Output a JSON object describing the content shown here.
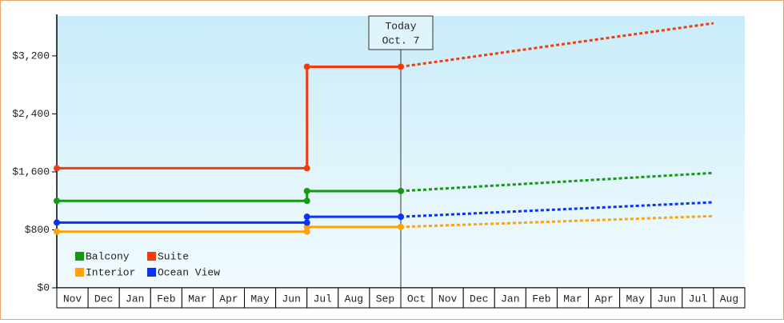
{
  "chart_data": {
    "type": "line",
    "categories": [
      "Nov",
      "Dec",
      "Jan",
      "Feb",
      "Mar",
      "Apr",
      "May",
      "Jun",
      "Jul",
      "Aug",
      "Sep",
      "Oct",
      "Nov",
      "Dec",
      "Jan",
      "Feb",
      "Mar",
      "Apr",
      "May",
      "Jun",
      "Jul",
      "Aug"
    ],
    "series": [
      {
        "name": "Balcony",
        "color": "#139a13",
        "values": [
          1200,
          1200,
          1200,
          1200,
          1200,
          1200,
          1200,
          1200,
          1335,
          1335,
          1335,
          1335,
          null,
          null,
          null,
          null,
          null,
          null,
          null,
          null,
          null,
          null
        ],
        "forecast": [
          null,
          null,
          null,
          null,
          null,
          null,
          null,
          null,
          null,
          null,
          null,
          1335,
          1360,
          1385,
          1410,
          1435,
          1460,
          1485,
          1510,
          1535,
          1560,
          1585
        ]
      },
      {
        "name": "Suite",
        "color": "#f23c0e",
        "values": [
          1650,
          1650,
          1650,
          1650,
          1650,
          1650,
          1650,
          1650,
          3050,
          3050,
          3050,
          3050,
          null,
          null,
          null,
          null,
          null,
          null,
          null,
          null,
          null,
          null
        ],
        "forecast": [
          null,
          null,
          null,
          null,
          null,
          null,
          null,
          null,
          null,
          null,
          null,
          3050,
          3110,
          3170,
          3230,
          3290,
          3350,
          3410,
          3470,
          3530,
          3590,
          3650
        ]
      },
      {
        "name": "Interior",
        "color": "#ffa20c",
        "values": [
          775,
          775,
          775,
          775,
          775,
          775,
          775,
          775,
          840,
          840,
          840,
          840,
          null,
          null,
          null,
          null,
          null,
          null,
          null,
          null,
          null,
          null
        ],
        "forecast": [
          null,
          null,
          null,
          null,
          null,
          null,
          null,
          null,
          null,
          null,
          null,
          840,
          855,
          870,
          885,
          900,
          915,
          930,
          945,
          960,
          975,
          990
        ]
      },
      {
        "name": "Ocean View",
        "color": "#0a32f5",
        "values": [
          900,
          900,
          900,
          900,
          900,
          900,
          900,
          900,
          980,
          980,
          980,
          980,
          null,
          null,
          null,
          null,
          null,
          null,
          null,
          null,
          null,
          null
        ],
        "forecast": [
          null,
          null,
          null,
          null,
          null,
          null,
          null,
          null,
          null,
          null,
          null,
          980,
          1000,
          1020,
          1040,
          1060,
          1080,
          1100,
          1120,
          1140,
          1160,
          1180
        ]
      }
    ],
    "ylim": [
      0,
      3750
    ],
    "yticks": [
      {
        "value": 0,
        "label": "$0"
      },
      {
        "value": 800,
        "label": "$800"
      },
      {
        "value": 1600,
        "label": "$1,600"
      },
      {
        "value": 2400,
        "label": "$2,400"
      },
      {
        "value": 3200,
        "label": "$3,200"
      }
    ],
    "annotation": {
      "at": "Oct",
      "lines": [
        "Today",
        "Oct. 7"
      ]
    },
    "legend": "lower-left",
    "step": true
  }
}
